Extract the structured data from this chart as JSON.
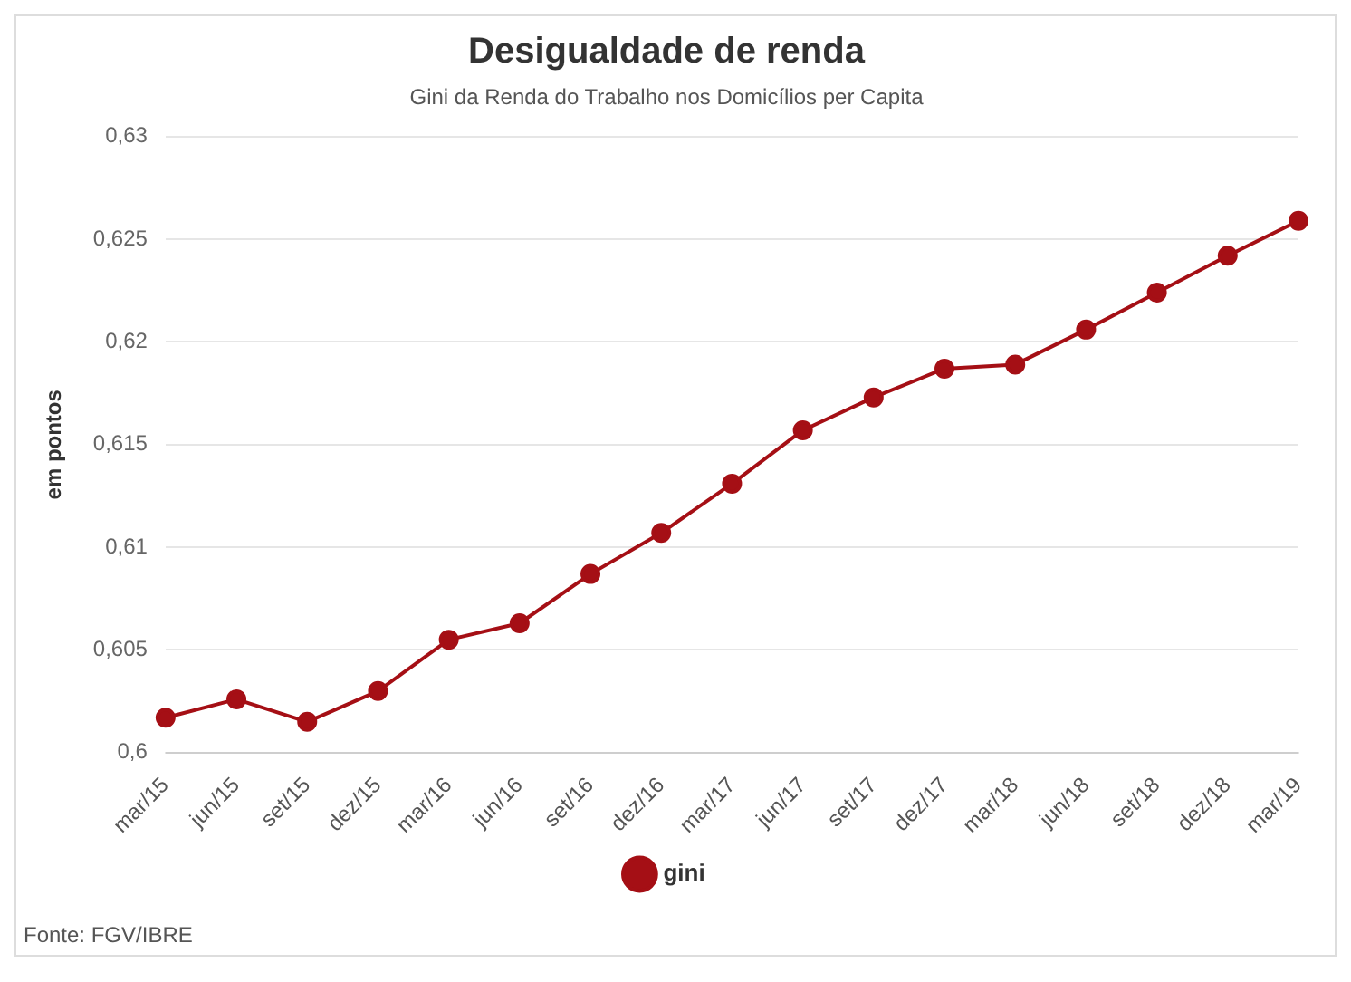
{
  "chart_data": {
    "type": "line",
    "title": "Desigualdade de renda",
    "subtitle": "Gini da Renda do Trabalho nos Domicílios per Capita",
    "ylabel": "em pontos",
    "categories": [
      "mar/15",
      "jun/15",
      "set/15",
      "dez/15",
      "mar/16",
      "jun/16",
      "set/16",
      "dez/16",
      "mar/17",
      "jun/17",
      "set/17",
      "dez/17",
      "mar/18",
      "jun/18",
      "set/18",
      "dez/18",
      "mar/19"
    ],
    "series": [
      {
        "name": "gini",
        "color": "#a50f15",
        "values": [
          0.6017,
          0.6026,
          0.6015,
          0.603,
          0.6055,
          0.6063,
          0.6087,
          0.6107,
          0.6131,
          0.6157,
          0.6173,
          0.6187,
          0.6189,
          0.6206,
          0.6224,
          0.6242,
          0.6259
        ]
      }
    ],
    "ylim": [
      0.6,
      0.63
    ],
    "yticks": [
      {
        "value": 0.6,
        "label": "0,6"
      },
      {
        "value": 0.605,
        "label": "0,605"
      },
      {
        "value": 0.61,
        "label": "0,61"
      },
      {
        "value": 0.615,
        "label": "0,615"
      },
      {
        "value": 0.62,
        "label": "0,62"
      },
      {
        "value": 0.625,
        "label": "0,625"
      },
      {
        "value": 0.63,
        "label": "0,63"
      }
    ],
    "grid": "y",
    "legend": "bottom",
    "marker": "circle",
    "line_style": "solid",
    "annotations": [
      "Fonte: FGV/IBRE"
    ]
  }
}
